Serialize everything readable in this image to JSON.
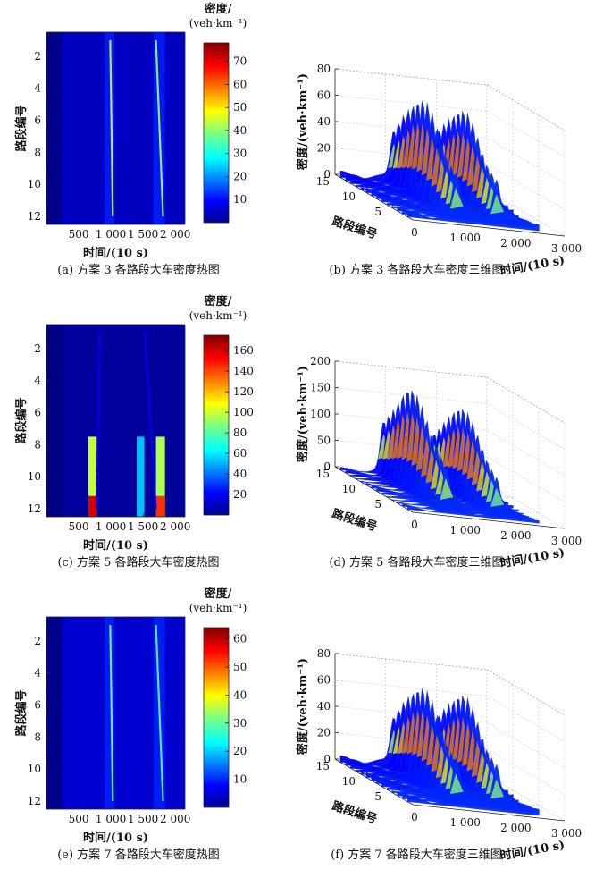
{
  "chart_data": [
    {
      "type": "heatmap",
      "caption": "(a) 方案 3 各路段大车密度热图",
      "xlabel": "时间/(10 s)",
      "ylabel": "路段编号",
      "xticks": [
        "500",
        "1 000",
        "1 500",
        "2 000"
      ],
      "yticks": [
        "2",
        "4",
        "6",
        "8",
        "10",
        "12"
      ],
      "colorbar": {
        "title": "密度/",
        "unit": "(veh·km⁻¹)",
        "ticks": [
          "10",
          "20",
          "30",
          "40",
          "50",
          "60",
          "70"
        ],
        "range": [
          0,
          78
        ]
      },
      "x_range": [
        0,
        2150
      ],
      "y_range": [
        0.5,
        12.5
      ],
      "bands": [
        {
          "x0": 900,
          "x1": 1060,
          "y0": 0.5,
          "y1": 12.5,
          "value": 12
        },
        {
          "x0": 1660,
          "x1": 1840,
          "y0": 0.5,
          "y1": 12.5,
          "value": 12
        }
      ],
      "streaks": [
        {
          "x0": 990,
          "y0": 1,
          "x1": 1030,
          "y1": 12,
          "peak": 45
        },
        {
          "x0": 1700,
          "y0": 1,
          "x1": 1810,
          "y1": 12,
          "peak": 42
        }
      ]
    },
    {
      "type": "surface3d",
      "caption": "(b) 方案 3 各路段大车密度三维图",
      "xlabel": "时间/(10 s)",
      "ylabel": "路段编号",
      "zlabel": "密度/(veh·km⁻¹)",
      "xticks": [
        "0",
        "1 000",
        "2 000",
        "3 000"
      ],
      "yticks": [
        "15",
        "10",
        "5"
      ],
      "zticks": [
        "0",
        "20",
        "40",
        "60",
        "80"
      ],
      "peaks": [
        {
          "time": 1000,
          "value": 62
        },
        {
          "time": 1800,
          "value": 58
        }
      ]
    },
    {
      "type": "heatmap",
      "caption": "(c) 方案 5 各路段大车密度热图",
      "xlabel": "时间/(10 s)",
      "ylabel": "路段编号",
      "xticks": [
        "500",
        "1 000",
        "1 500",
        "2 000"
      ],
      "yticks": [
        "2",
        "4",
        "6",
        "8",
        "10",
        "12"
      ],
      "colorbar": {
        "title": "密度/",
        "unit": "(veh·km⁻¹)",
        "ticks": [
          "20",
          "40",
          "60",
          "80",
          "100",
          "120",
          "140",
          "160"
        ],
        "range": [
          0,
          175
        ]
      },
      "x_range": [
        0,
        2150
      ],
      "y_range": [
        0.5,
        12.5
      ],
      "blocks": [
        {
          "x0": 650,
          "x1": 780,
          "y0": 7.5,
          "y1": 12.5,
          "value": 100
        },
        {
          "x0": 1400,
          "x1": 1520,
          "y0": 7.5,
          "y1": 12.5,
          "value": 55
        },
        {
          "x0": 1700,
          "x1": 1840,
          "y0": 7.5,
          "y1": 12.5,
          "value": 95
        }
      ],
      "hot_cells": [
        {
          "x0": 650,
          "x1": 780,
          "y0": 11.2,
          "y1": 12.5,
          "value": 160
        },
        {
          "x0": 1700,
          "x1": 1840,
          "y0": 11.2,
          "y1": 12.5,
          "value": 145
        }
      ],
      "streaks": [
        {
          "x0": 830,
          "y0": 1,
          "x1": 780,
          "y1": 12,
          "peak": 20
        },
        {
          "x0": 1520,
          "y0": 1,
          "x1": 1700,
          "y1": 12,
          "peak": 20
        }
      ]
    },
    {
      "type": "surface3d",
      "caption": "(d) 方案 5 各路段大车密度三维图",
      "xlabel": "时间/(10 s)",
      "ylabel": "路段编号",
      "zlabel": "密度/(veh·km⁻¹)",
      "xticks": [
        "0",
        "1 000",
        "2 000",
        "3 000"
      ],
      "yticks": [
        "15",
        "10",
        "5"
      ],
      "zticks": [
        "0",
        "50",
        "100",
        "150",
        "200"
      ],
      "peaks": [
        {
          "time": 800,
          "value": 160
        },
        {
          "time": 1800,
          "value": 140
        }
      ]
    },
    {
      "type": "heatmap",
      "caption": "(e) 方案 7 各路段大车密度热图",
      "xlabel": "时间/(10 s)",
      "ylabel": "路段编号",
      "xticks": [
        "500",
        "1 000",
        "1 500",
        "2 000"
      ],
      "yticks": [
        "2",
        "4",
        "6",
        "8",
        "10",
        "12"
      ],
      "colorbar": {
        "title": "密度/",
        "unit": "(veh·km⁻¹)",
        "ticks": [
          "10",
          "20",
          "30",
          "40",
          "50",
          "60"
        ],
        "range": [
          0,
          64
        ]
      },
      "x_range": [
        0,
        2150
      ],
      "y_range": [
        0.5,
        12.5
      ],
      "bands": [
        {
          "x0": 900,
          "x1": 1060,
          "y0": 0.5,
          "y1": 12.5,
          "value": 10
        },
        {
          "x0": 1660,
          "x1": 1840,
          "y0": 0.5,
          "y1": 12.5,
          "value": 10
        }
      ],
      "streaks": [
        {
          "x0": 990,
          "y0": 1,
          "x1": 1030,
          "y1": 12,
          "peak": 32
        },
        {
          "x0": 1700,
          "y0": 1,
          "x1": 1810,
          "y1": 12,
          "peak": 30
        }
      ]
    },
    {
      "type": "surface3d",
      "caption": "(f) 方案 7 各路段大车密度三维图",
      "xlabel": "时间/(10 s)",
      "ylabel": "路段编号",
      "zlabel": "密度/(veh·km⁻¹)",
      "xticks": [
        "0",
        "1 000",
        "2 000",
        "3 000"
      ],
      "yticks": [
        "15",
        "10",
        "5"
      ],
      "zticks": [
        "0",
        "20",
        "40",
        "60",
        "80"
      ],
      "peaks": [
        {
          "time": 1000,
          "value": 60
        },
        {
          "time": 1800,
          "value": 58
        }
      ]
    }
  ]
}
